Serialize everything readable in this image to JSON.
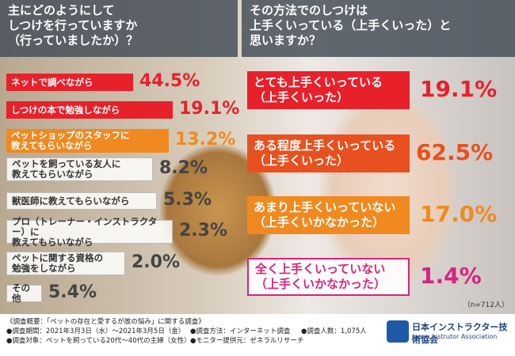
{
  "left": {
    "title": "主にどのようにして\nしつけを行っていますか\n（行っていましたか）？",
    "items": [
      {
        "label": "ネットで調べながら",
        "value": "44.5%"
      },
      {
        "label": "しつけの本で勉強しながら",
        "value": "19.1%"
      },
      {
        "label": "ペットショップのスタッフに\n教えてもらいながら",
        "value": "13.2%"
      },
      {
        "label": "ペットを飼っている友人に\n教えてもらいながら",
        "value": "8.2%"
      },
      {
        "label": "獣医師に教えてもらいながら",
        "value": "5.3%"
      },
      {
        "label": "プロ（トレーナー・インストラクター）に\n教えてもらいながら",
        "value": "2.3%"
      },
      {
        "label": "ペットに関する資格の\n勉強をしながら",
        "value": "2.0%"
      },
      {
        "label": "その他",
        "value": "5.4%"
      }
    ]
  },
  "right": {
    "title": "その方法でのしつけは\n上手くいっている（上手くいった）と\n思いますか？",
    "items": [
      {
        "label": "とても上手くいっている\n（上手くいった）",
        "value": "19.1%"
      },
      {
        "label": "ある程度上手くいっている\n（上手くいった）",
        "value": "62.5%"
      },
      {
        "label": "あまり上手くいっていない\n（上手くいかなかった）",
        "value": "17.0%"
      },
      {
        "label": "全く上手くいっていない\n（上手くいかなかった）",
        "value": "1.4%"
      }
    ],
    "note": "（n=712人）"
  },
  "footer": {
    "heading": "《調査概要：「ペットの存在と愛するが故の悩み」に関する調査》",
    "lines": [
      "●調査期間：2021年3月3日（水）～2021年3月5日（金）",
      "●調査方法：インターネット調査",
      "●調査人数：1,075人",
      "●調査対象：ペットを飼っている20代～40代の主婦（女性）",
      "●モニター提供元：ゼネラルリサーチ"
    ]
  },
  "logo": {
    "name": "日本インストラクター技術協会",
    "english": "Japan Instrutor Association"
  }
}
